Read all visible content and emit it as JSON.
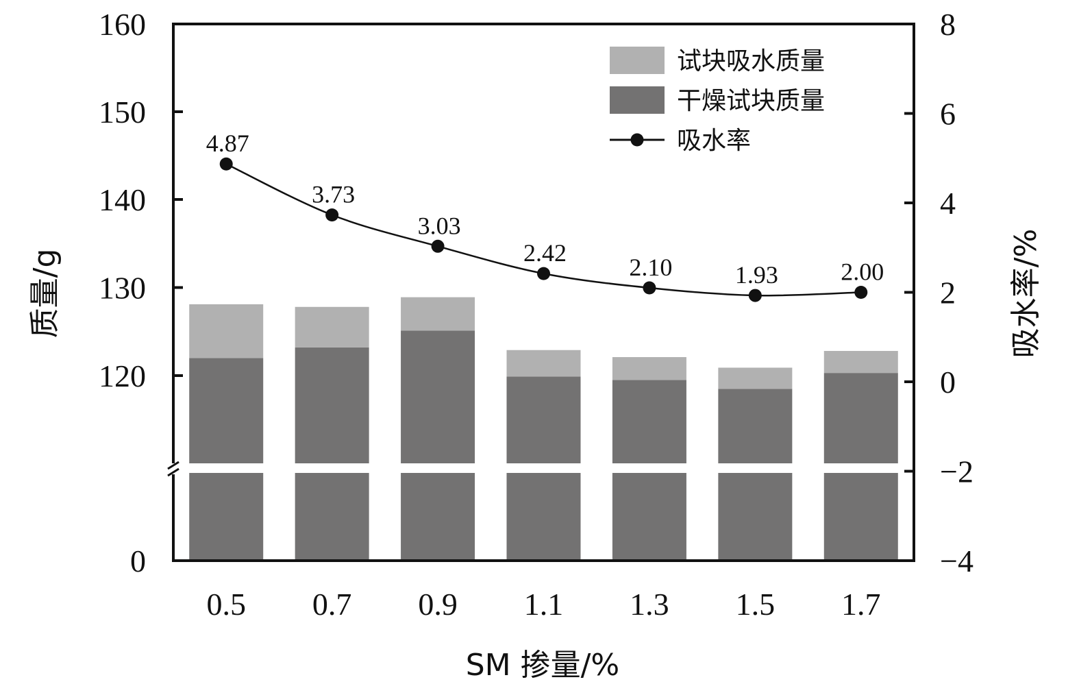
{
  "chart_data": {
    "type": "bar",
    "categories": [
      "0.5",
      "0.7",
      "0.9",
      "1.1",
      "1.3",
      "1.5",
      "1.7"
    ],
    "x_ticks": [
      "0.5",
      "0.7",
      "0.9",
      "1.1",
      "1.3",
      "1.5",
      "1.7"
    ],
    "series": [
      {
        "name": "干燥试块质量",
        "kind": "bar-stacked",
        "axis": "left",
        "color": "#737272",
        "values": [
          122.0,
          123.2,
          125.1,
          119.9,
          119.5,
          118.5,
          120.3
        ]
      },
      {
        "name": "试块吸水质量",
        "kind": "bar-stacked",
        "axis": "left",
        "color": "#b1b1b1",
        "values": [
          6.1,
          4.6,
          3.8,
          3.0,
          2.6,
          2.4,
          2.5
        ]
      },
      {
        "name": "吸水率",
        "kind": "line",
        "axis": "right",
        "color": "#111111",
        "values": [
          4.87,
          3.73,
          3.03,
          2.42,
          2.1,
          1.93,
          2.0
        ],
        "labels": [
          "4.87",
          "3.73",
          "3.03",
          "2.42",
          "2.10",
          "1.93",
          "2.00"
        ]
      }
    ],
    "xlabel": "SM 掺量/%",
    "ylabel": "质量/g",
    "y2label": "吸水率/%",
    "y_ticks": [
      "0",
      "120",
      "130",
      "140",
      "150",
      "160"
    ],
    "y_break": {
      "lower": 0,
      "upper": 110
    },
    "ylim": [
      110,
      160
    ],
    "y2_ticks": [
      "−4",
      "−2",
      "0",
      "2",
      "4",
      "6",
      "8"
    ],
    "y2lim": [
      -4,
      8
    ],
    "legend_position": "top-right",
    "grid": false
  }
}
